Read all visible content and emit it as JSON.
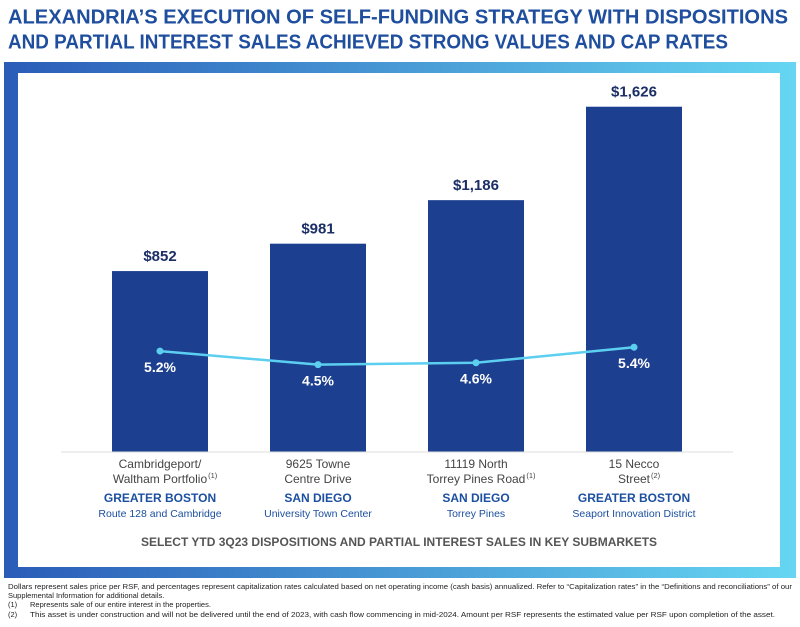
{
  "chart_data": {
    "type": "bar",
    "title": [
      "ALEXANDRIA’S EXECUTION OF SELF-FUNDING STRATEGY WITH DISPOSITIONS",
      "AND PARTIAL INTEREST SALES ACHIEVED STRONG VALUES AND CAP RATES"
    ],
    "categories": [
      [
        "Cambridgeport/",
        "Waltham Portfolio"
      ],
      [
        "9625 Towne",
        "Centre Drive"
      ],
      [
        "11119 North",
        "Torrey Pines Road"
      ],
      [
        "15 Necco",
        "Street"
      ]
    ],
    "category_notes": [
      "(1)",
      null,
      "(1)",
      "(2)"
    ],
    "submarkets": [
      {
        "region": "GREATER BOSTON",
        "area": "Route 128 and Cambridge"
      },
      {
        "region": "SAN DIEGO",
        "area": "University Town Center"
      },
      {
        "region": "SAN DIEGO",
        "area": "Torrey Pines"
      },
      {
        "region": "GREATER BOSTON",
        "area": "Seaport Innovation District"
      }
    ],
    "values": [
      852,
      981,
      1186,
      1626
    ],
    "value_labels": [
      "$852",
      "$981",
      "$1,186",
      "$1,626"
    ],
    "color": "#1c3f8f",
    "ylim": [
      0,
      1700
    ],
    "line": {
      "type": "line",
      "axis": "y2",
      "values": [
        5.2,
        4.5,
        4.6,
        5.4
      ],
      "value_labels": [
        "5.2%",
        "4.5%",
        "4.6%",
        "5.4%"
      ],
      "color": "#5ccff0"
    },
    "y2lim": [
      0,
      18.6
    ],
    "x_label": "SELECT YTD 3Q23 DISPOSITIONS AND PARTIAL INTEREST SALES IN KEY SUBMARKETS"
  },
  "footnotes": {
    "notes": [
      "Dollars represent sales price per RSF, and percentages represent capitalization rates calculated based on net operating income (cash basis) annualized. Refer to “Capitalization rates” in the “Definitions and reconciliations” of our",
      "Supplemental Information for additional details."
    ],
    "items": [
      {
        "marker": "(1)",
        "text": "Represents sale of our entire interest in the properties."
      },
      {
        "marker": "(2)",
        "text": "This asset is under construction and will not be delivered until the end of 2023, with cash flow commencing in mid-2024. Amount per RSF represents the estimated value per RSF upon completion of the asset."
      }
    ]
  }
}
